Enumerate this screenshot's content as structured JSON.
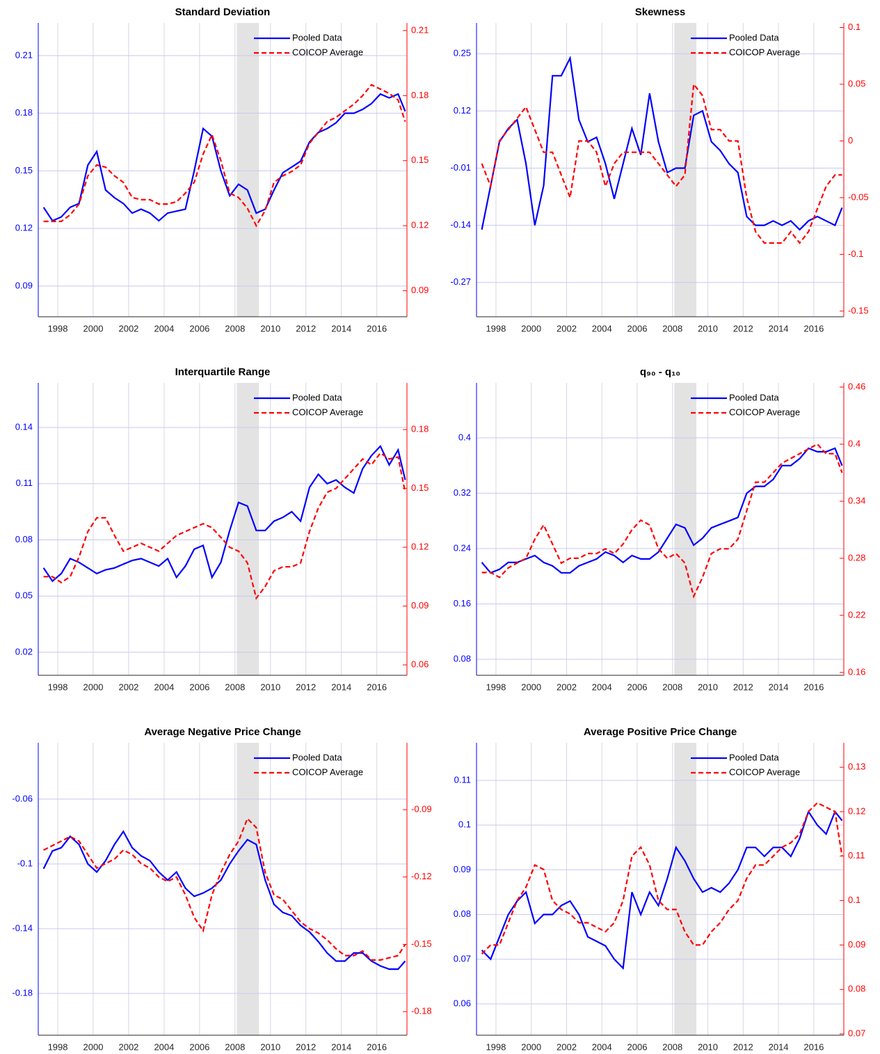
{
  "chart_data": [
    {
      "type": "line",
      "title": "Standard Deviation",
      "x": [
        1997.2,
        1997.7,
        1998.2,
        1998.7,
        1999.2,
        1999.7,
        2000.2,
        2000.7,
        2001.2,
        2001.7,
        2002.2,
        2002.7,
        2003.2,
        2003.7,
        2004.2,
        2004.7,
        2005.2,
        2005.7,
        2006.2,
        2006.7,
        2007.2,
        2007.7,
        2008.2,
        2008.7,
        2009.2,
        2009.7,
        2010.2,
        2010.7,
        2011.2,
        2011.7,
        2012.2,
        2012.7,
        2013.2,
        2013.7,
        2014.2,
        2014.7,
        2015.2,
        2015.7,
        2016.2,
        2016.7,
        2017.2,
        2017.6
      ],
      "xlim": [
        1996.9,
        2017.7
      ],
      "xticks": [
        1998,
        2000,
        2002,
        2004,
        2006,
        2008,
        2010,
        2012,
        2014,
        2016
      ],
      "ylim": [
        0.074,
        0.227
      ],
      "yticks": [
        0.09,
        0.12,
        0.15,
        0.18,
        0.21
      ],
      "y2lim": [
        0.078,
        0.2135
      ],
      "y2ticks": [
        0.09,
        0.12,
        0.15,
        0.18,
        0.21
      ],
      "shade": [
        2008.1,
        2009.35
      ],
      "grid": true,
      "legend": "northeast",
      "series": [
        {
          "name": "Pooled Data",
          "color": "#0000ff",
          "style": "solid",
          "values": [
            0.131,
            0.124,
            0.126,
            0.131,
            0.133,
            0.153,
            0.16,
            0.14,
            0.136,
            0.133,
            0.128,
            0.13,
            0.128,
            0.124,
            0.128,
            0.129,
            0.13,
            0.15,
            0.172,
            0.168,
            0.15,
            0.137,
            0.143,
            0.14,
            0.128,
            0.13,
            0.14,
            0.149,
            0.152,
            0.155,
            0.165,
            0.17,
            0.172,
            0.175,
            0.18,
            0.18,
            0.182,
            0.185,
            0.19,
            0.188,
            0.19,
            0.181
          ]
        },
        {
          "name": "COICOP Average",
          "color": "#ff0000",
          "style": "dashed",
          "axis": "y2",
          "values": [
            0.122,
            0.122,
            0.122,
            0.125,
            0.13,
            0.143,
            0.148,
            0.147,
            0.143,
            0.14,
            0.133,
            0.132,
            0.132,
            0.13,
            0.13,
            0.131,
            0.135,
            0.14,
            0.153,
            0.162,
            0.15,
            0.135,
            0.133,
            0.128,
            0.12,
            0.127,
            0.14,
            0.143,
            0.145,
            0.148,
            0.158,
            0.163,
            0.168,
            0.17,
            0.173,
            0.176,
            0.18,
            0.185,
            0.183,
            0.181,
            0.178,
            0.168
          ]
        }
      ]
    },
    {
      "type": "line",
      "title": "Skewness",
      "x": [
        1997.2,
        1997.7,
        1998.2,
        1998.7,
        1999.2,
        1999.7,
        2000.2,
        2000.7,
        2001.2,
        2001.7,
        2002.2,
        2002.7,
        2003.2,
        2003.7,
        2004.2,
        2004.7,
        2005.2,
        2005.7,
        2006.2,
        2006.7,
        2007.2,
        2007.7,
        2008.2,
        2008.7,
        2009.2,
        2009.7,
        2010.2,
        2010.7,
        2011.2,
        2011.7,
        2012.2,
        2012.7,
        2013.2,
        2013.7,
        2014.2,
        2014.7,
        2015.2,
        2015.7,
        2016.2,
        2016.7,
        2017.2,
        2017.6
      ],
      "xlim": [
        1996.9,
        2017.7
      ],
      "xticks": [
        1998,
        2000,
        2002,
        2004,
        2006,
        2008,
        2010,
        2012,
        2014,
        2016
      ],
      "ylim": [
        -0.348,
        0.32
      ],
      "yticks": [
        -0.27,
        -0.14,
        -0.01,
        0.12,
        0.25
      ],
      "y2lim": [
        -0.155,
        0.104
      ],
      "y2ticks": [
        -0.15,
        -0.1,
        -0.05,
        0,
        0.05,
        0.1
      ],
      "shade": [
        2008.1,
        2009.35
      ],
      "grid": true,
      "legend": "northeast",
      "series": [
        {
          "name": "Pooled Data",
          "color": "#0000ff",
          "style": "solid",
          "values": [
            -0.15,
            -0.05,
            0.05,
            0.08,
            0.1,
            0.0,
            -0.14,
            -0.05,
            0.2,
            0.2,
            0.24,
            0.1,
            0.05,
            0.06,
            0.0,
            -0.08,
            0.0,
            0.08,
            0.02,
            0.16,
            0.05,
            -0.02,
            -0.01,
            -0.01,
            0.11,
            0.12,
            0.05,
            0.03,
            0.0,
            -0.02,
            -0.12,
            -0.14,
            -0.14,
            -0.13,
            -0.14,
            -0.13,
            -0.15,
            -0.13,
            -0.12,
            -0.13,
            -0.14,
            -0.1
          ]
        },
        {
          "name": "COICOP Average",
          "color": "#ff0000",
          "style": "dashed",
          "axis": "y2",
          "values": [
            -0.02,
            -0.04,
            0.0,
            0.01,
            0.02,
            0.03,
            0.01,
            -0.01,
            -0.01,
            -0.03,
            -0.05,
            0.0,
            0.0,
            -0.01,
            -0.04,
            -0.02,
            -0.01,
            -0.01,
            -0.01,
            -0.01,
            -0.02,
            -0.03,
            -0.04,
            -0.03,
            0.05,
            0.04,
            0.01,
            0.01,
            0.0,
            0.0,
            -0.05,
            -0.08,
            -0.09,
            -0.09,
            -0.09,
            -0.08,
            -0.09,
            -0.08,
            -0.06,
            -0.04,
            -0.03,
            -0.03
          ]
        }
      ]
    },
    {
      "type": "line",
      "title": "Interquartile Range",
      "x": [
        1997.2,
        1997.7,
        1998.2,
        1998.7,
        1999.2,
        1999.7,
        2000.2,
        2000.7,
        2001.2,
        2001.7,
        2002.2,
        2002.7,
        2003.2,
        2003.7,
        2004.2,
        2004.7,
        2005.2,
        2005.7,
        2006.2,
        2006.7,
        2007.2,
        2007.7,
        2008.2,
        2008.7,
        2009.2,
        2009.7,
        2010.2,
        2010.7,
        2011.2,
        2011.7,
        2012.2,
        2012.7,
        2013.2,
        2013.7,
        2014.2,
        2014.7,
        2015.2,
        2015.7,
        2016.2,
        2016.7,
        2017.2,
        2017.6
      ],
      "xlim": [
        1996.9,
        2017.7
      ],
      "xticks": [
        1998,
        2000,
        2002,
        2004,
        2006,
        2008,
        2010,
        2012,
        2014,
        2016
      ],
      "ylim": [
        0.0077,
        0.1638
      ],
      "yticks": [
        0.02,
        0.05,
        0.08,
        0.11,
        0.14
      ],
      "y2lim": [
        0.0547,
        0.2038
      ],
      "y2ticks": [
        0.06,
        0.09,
        0.12,
        0.15,
        0.18
      ],
      "shade": [
        2008.1,
        2009.35
      ],
      "grid": true,
      "legend": "northeast",
      "series": [
        {
          "name": "Pooled Data",
          "color": "#0000ff",
          "style": "solid",
          "values": [
            0.065,
            0.058,
            0.062,
            0.07,
            0.068,
            0.065,
            0.062,
            0.064,
            0.065,
            0.067,
            0.069,
            0.07,
            0.068,
            0.066,
            0.07,
            0.06,
            0.066,
            0.075,
            0.077,
            0.06,
            0.068,
            0.085,
            0.1,
            0.098,
            0.085,
            0.085,
            0.09,
            0.092,
            0.095,
            0.09,
            0.108,
            0.115,
            0.11,
            0.112,
            0.108,
            0.105,
            0.118,
            0.125,
            0.13,
            0.12,
            0.128,
            0.112
          ]
        },
        {
          "name": "COICOP Average",
          "color": "#ff0000",
          "style": "dashed",
          "axis": "y2",
          "values": [
            0.105,
            0.105,
            0.102,
            0.105,
            0.115,
            0.128,
            0.135,
            0.135,
            0.126,
            0.118,
            0.12,
            0.122,
            0.12,
            0.118,
            0.122,
            0.126,
            0.128,
            0.13,
            0.132,
            0.13,
            0.125,
            0.12,
            0.118,
            0.112,
            0.094,
            0.1,
            0.108,
            0.11,
            0.11,
            0.112,
            0.128,
            0.14,
            0.148,
            0.15,
            0.155,
            0.16,
            0.165,
            0.162,
            0.168,
            0.165,
            0.166,
            0.148
          ]
        }
      ]
    },
    {
      "type": "line",
      "title": "q₉₀ - q₁₀",
      "x": [
        1997.2,
        1997.7,
        1998.2,
        1998.7,
        1999.2,
        1999.7,
        2000.2,
        2000.7,
        2001.2,
        2001.7,
        2002.2,
        2002.7,
        2003.2,
        2003.7,
        2004.2,
        2004.7,
        2005.2,
        2005.7,
        2006.2,
        2006.7,
        2007.2,
        2007.7,
        2008.2,
        2008.7,
        2009.2,
        2009.7,
        2010.2,
        2010.7,
        2011.2,
        2011.7,
        2012.2,
        2012.7,
        2013.2,
        2013.7,
        2014.2,
        2014.7,
        2015.2,
        2015.7,
        2016.2,
        2016.7,
        2017.2,
        2017.6
      ],
      "xlim": [
        1996.9,
        2017.7
      ],
      "xticks": [
        1998,
        2000,
        2002,
        2004,
        2006,
        2008,
        2010,
        2012,
        2014,
        2016
      ],
      "ylim": [
        0.0569,
        0.4795
      ],
      "yticks": [
        0.08,
        0.16,
        0.24,
        0.32,
        0.4
      ],
      "y2lim": [
        0.157,
        0.4644
      ],
      "y2ticks": [
        0.16,
        0.22,
        0.28,
        0.34,
        0.4,
        0.46
      ],
      "shade": [
        2008.1,
        2009.35
      ],
      "grid": true,
      "legend": "northeast",
      "series": [
        {
          "name": "Pooled Data",
          "color": "#0000ff",
          "style": "solid",
          "values": [
            0.22,
            0.205,
            0.21,
            0.22,
            0.22,
            0.225,
            0.23,
            0.22,
            0.215,
            0.205,
            0.205,
            0.215,
            0.22,
            0.225,
            0.235,
            0.23,
            0.22,
            0.23,
            0.225,
            0.225,
            0.235,
            0.255,
            0.275,
            0.27,
            0.245,
            0.255,
            0.27,
            0.275,
            0.28,
            0.285,
            0.32,
            0.33,
            0.33,
            0.34,
            0.36,
            0.36,
            0.37,
            0.385,
            0.38,
            0.38,
            0.385,
            0.36
          ]
        },
        {
          "name": "COICOP Average",
          "color": "#ff0000",
          "style": "dashed",
          "axis": "y2",
          "values": [
            0.265,
            0.265,
            0.26,
            0.27,
            0.275,
            0.28,
            0.3,
            0.315,
            0.295,
            0.275,
            0.28,
            0.28,
            0.285,
            0.285,
            0.29,
            0.285,
            0.295,
            0.31,
            0.32,
            0.315,
            0.29,
            0.28,
            0.285,
            0.275,
            0.24,
            0.26,
            0.285,
            0.29,
            0.29,
            0.3,
            0.33,
            0.36,
            0.36,
            0.37,
            0.38,
            0.385,
            0.39,
            0.395,
            0.4,
            0.39,
            0.39,
            0.37
          ]
        }
      ]
    },
    {
      "type": "line",
      "title": "Average Negative Price Change",
      "x": [
        1997.2,
        1997.7,
        1998.2,
        1998.7,
        1999.2,
        1999.7,
        2000.2,
        2000.7,
        2001.2,
        2001.7,
        2002.2,
        2002.7,
        2003.2,
        2003.7,
        2004.2,
        2004.7,
        2005.2,
        2005.7,
        2006.2,
        2006.7,
        2007.2,
        2007.7,
        2008.2,
        2008.7,
        2009.2,
        2009.7,
        2010.2,
        2010.7,
        2011.2,
        2011.7,
        2012.2,
        2012.7,
        2013.2,
        2013.7,
        2014.2,
        2014.7,
        2015.2,
        2015.7,
        2016.2,
        2016.7,
        2017.2,
        2017.6
      ],
      "xlim": [
        1996.9,
        2017.7
      ],
      "xticks": [
        1998,
        2000,
        2002,
        2004,
        2006,
        2008,
        2010,
        2012,
        2014,
        2016
      ],
      "ylim": [
        -0.2058,
        -0.0252
      ],
      "yticks": [
        -0.18,
        -0.14,
        -0.1,
        -0.06
      ],
      "y2lim": [
        -0.1905,
        -0.0602
      ],
      "y2ticks": [
        -0.18,
        -0.15,
        -0.12,
        -0.09
      ],
      "shade": [
        2008.1,
        2009.35
      ],
      "grid": true,
      "legend": "northeast",
      "series": [
        {
          "name": "Pooled Data",
          "color": "#0000ff",
          "style": "solid",
          "values": [
            -0.103,
            -0.092,
            -0.09,
            -0.083,
            -0.088,
            -0.1,
            -0.105,
            -0.098,
            -0.088,
            -0.08,
            -0.09,
            -0.095,
            -0.098,
            -0.105,
            -0.11,
            -0.105,
            -0.115,
            -0.12,
            -0.118,
            -0.115,
            -0.11,
            -0.1,
            -0.092,
            -0.085,
            -0.088,
            -0.11,
            -0.125,
            -0.13,
            -0.132,
            -0.138,
            -0.142,
            -0.148,
            -0.155,
            -0.16,
            -0.16,
            -0.155,
            -0.155,
            -0.16,
            -0.163,
            -0.165,
            -0.165,
            -0.16
          ]
        },
        {
          "name": "COICOP Average",
          "color": "#ff0000",
          "style": "dashed",
          "axis": "y2",
          "values": [
            -0.108,
            -0.106,
            -0.104,
            -0.102,
            -0.104,
            -0.11,
            -0.116,
            -0.114,
            -0.112,
            -0.108,
            -0.11,
            -0.114,
            -0.116,
            -0.12,
            -0.122,
            -0.12,
            -0.128,
            -0.138,
            -0.144,
            -0.128,
            -0.118,
            -0.11,
            -0.104,
            -0.094,
            -0.098,
            -0.118,
            -0.128,
            -0.13,
            -0.135,
            -0.14,
            -0.143,
            -0.145,
            -0.148,
            -0.152,
            -0.155,
            -0.155,
            -0.153,
            -0.157,
            -0.157,
            -0.156,
            -0.155,
            -0.15
          ]
        }
      ]
    },
    {
      "type": "line",
      "title": "Average Positive Price Change",
      "x": [
        1997.2,
        1997.7,
        1998.2,
        1998.7,
        1999.2,
        1999.7,
        2000.2,
        2000.7,
        2001.2,
        2001.7,
        2002.2,
        2002.7,
        2003.2,
        2003.7,
        2004.2,
        2004.7,
        2005.2,
        2005.7,
        2006.2,
        2006.7,
        2007.2,
        2007.7,
        2008.2,
        2008.7,
        2009.2,
        2009.7,
        2010.2,
        2010.7,
        2011.2,
        2011.7,
        2012.2,
        2012.7,
        2013.2,
        2013.7,
        2014.2,
        2014.7,
        2015.2,
        2015.7,
        2016.2,
        2016.7,
        2017.2,
        2017.6
      ],
      "xlim": [
        1996.9,
        2017.7
      ],
      "xticks": [
        1998,
        2000,
        2002,
        2004,
        2006,
        2008,
        2010,
        2012,
        2014,
        2016
      ],
      "ylim": [
        0.053,
        0.1184
      ],
      "yticks": [
        0.06,
        0.07,
        0.08,
        0.09,
        0.1,
        0.11
      ],
      "y2lim": [
        0.0697,
        0.1355
      ],
      "y2ticks": [
        0.07,
        0.08,
        0.09,
        0.1,
        0.11,
        0.12,
        0.13
      ],
      "shade": [
        2008.1,
        2009.35
      ],
      "grid": true,
      "legend": "northeast",
      "series": [
        {
          "name": "Pooled Data",
          "color": "#0000ff",
          "style": "solid",
          "values": [
            0.072,
            0.07,
            0.075,
            0.08,
            0.083,
            0.085,
            0.078,
            0.08,
            0.08,
            0.082,
            0.083,
            0.08,
            0.075,
            0.074,
            0.073,
            0.07,
            0.068,
            0.085,
            0.08,
            0.085,
            0.082,
            0.088,
            0.095,
            0.092,
            0.088,
            0.085,
            0.086,
            0.085,
            0.087,
            0.09,
            0.095,
            0.095,
            0.093,
            0.095,
            0.095,
            0.093,
            0.097,
            0.103,
            0.1,
            0.098,
            0.103,
            0.101
          ]
        },
        {
          "name": "COICOP Average",
          "color": "#ff0000",
          "style": "dashed",
          "axis": "y2",
          "values": [
            0.088,
            0.09,
            0.09,
            0.095,
            0.1,
            0.103,
            0.108,
            0.107,
            0.1,
            0.098,
            0.097,
            0.095,
            0.095,
            0.094,
            0.093,
            0.095,
            0.1,
            0.11,
            0.112,
            0.108,
            0.1,
            0.098,
            0.098,
            0.093,
            0.09,
            0.09,
            0.093,
            0.095,
            0.098,
            0.1,
            0.105,
            0.108,
            0.108,
            0.11,
            0.112,
            0.113,
            0.115,
            0.12,
            0.122,
            0.121,
            0.12,
            0.11
          ]
        }
      ]
    }
  ]
}
